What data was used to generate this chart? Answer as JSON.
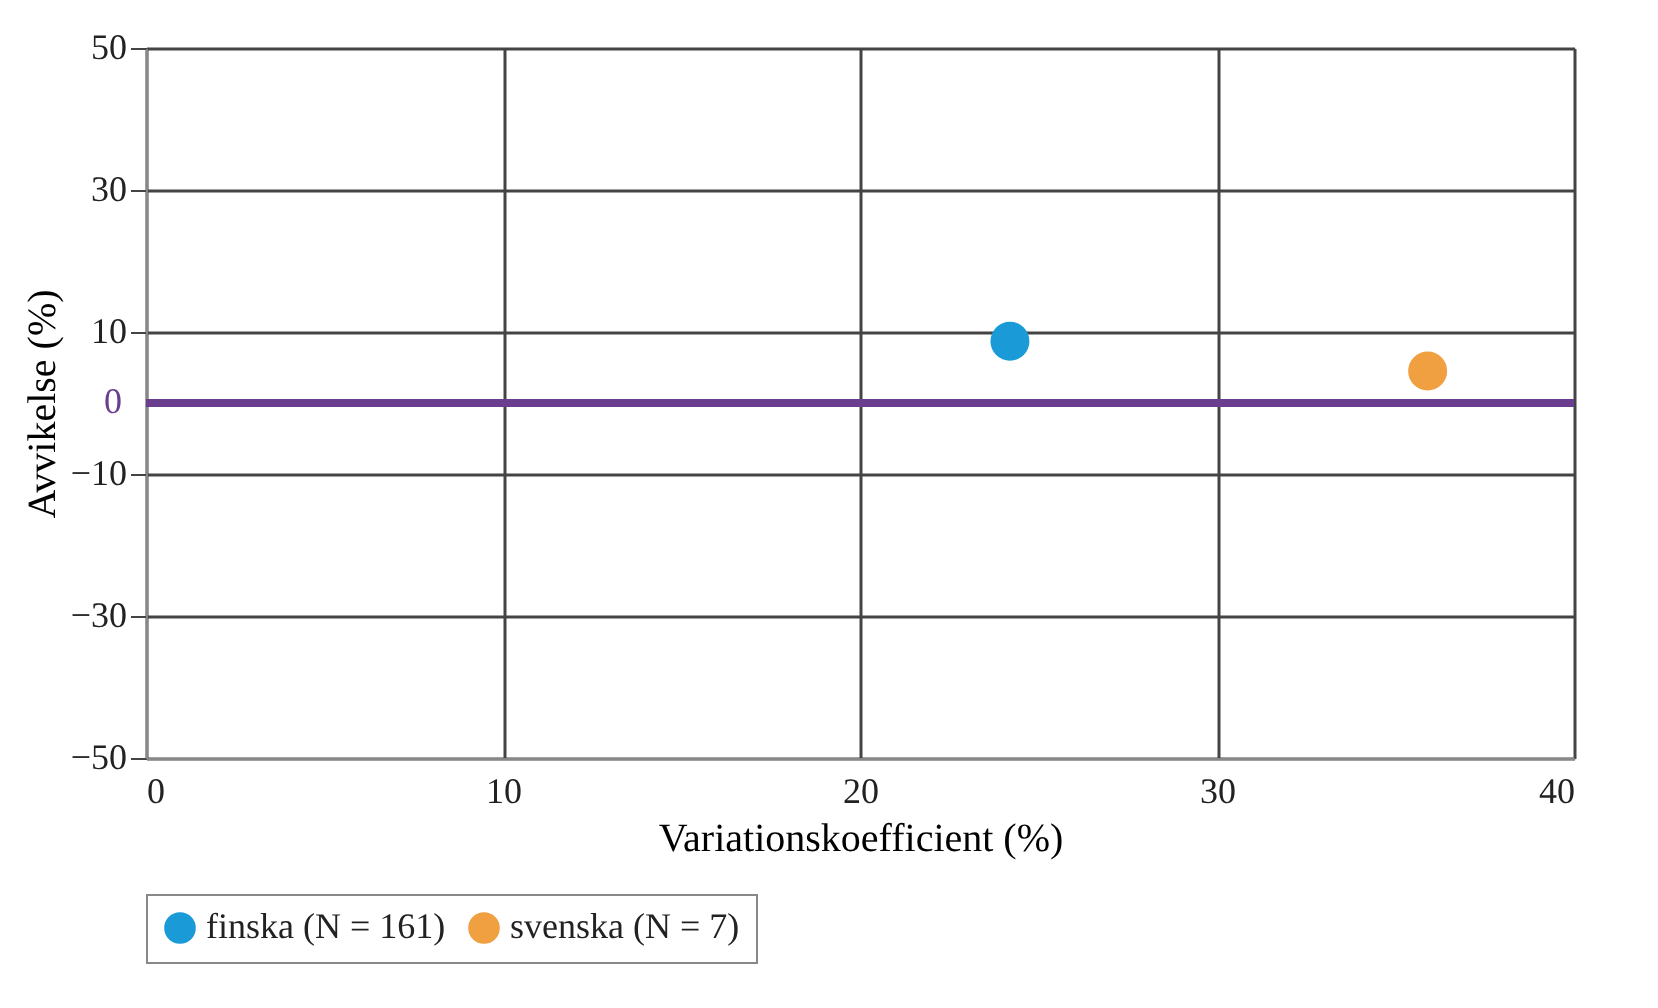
{
  "chart_data": {
    "type": "scatter",
    "xlabel": "Variationskoefficient (%)",
    "ylabel": "Avvikelse (%)",
    "series": [
      {
        "name": "finska (N = 161)",
        "color": "#1a9ad6",
        "x": [
          24.2
        ],
        "values": [
          8.7
        ]
      },
      {
        "name": "svenska (N = 7)",
        "color": "#f0a040",
        "x": [
          35.9
        ],
        "values": [
          4.5
        ]
      }
    ],
    "xlim": [
      0,
      40
    ],
    "xticks": [
      0,
      10,
      20,
      30,
      40
    ],
    "ylim": [
      -50,
      50
    ],
    "yticks": [
      -50,
      -30,
      -10,
      10,
      30,
      50
    ],
    "ref_lines": [
      {
        "axis": "y",
        "value": 0,
        "label": "0",
        "color": "#6a3d8f"
      }
    ],
    "grid": true,
    "legend": "bottom",
    "marker": "circle"
  }
}
